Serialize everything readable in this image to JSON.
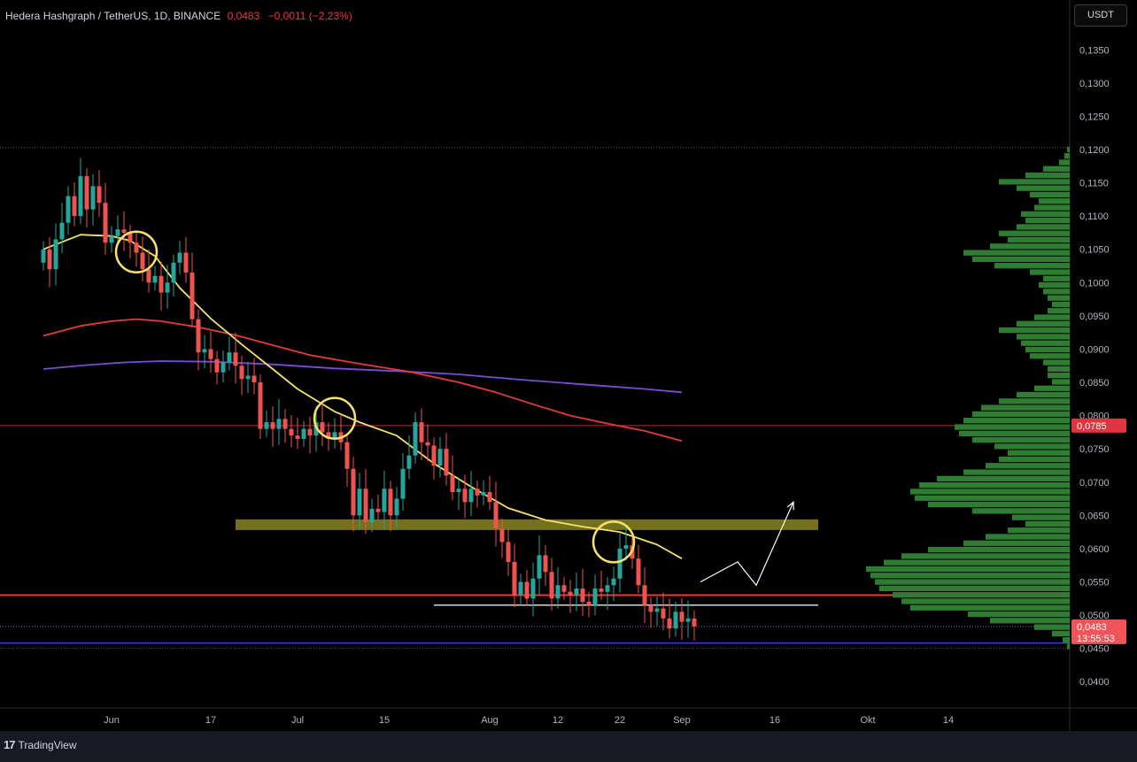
{
  "legend": {
    "symbol": "Hedera Hashgraph / TetherUS, 1D, BINANCE",
    "price": "0,0483",
    "change": "−0,0011 (−2,23%)"
  },
  "currency_button": "USDT",
  "brand": "TradingView",
  "colors": {
    "up": "#26a69a",
    "down": "#ef5350",
    "ma_short": "#f5e16e",
    "ma_mid": "#e53b3b",
    "ma_long": "#7b4cd6",
    "volume_profile": "#2e7d32",
    "zone": "#8a8420",
    "circle": "#f5e16e"
  },
  "chart_data": {
    "type": "candlestick",
    "symbol": "HBARUSDT",
    "timeframe": "1D",
    "exchange": "BINANCE",
    "current_price": 0.0483,
    "current_price_label": "0,0483",
    "countdown": "13:55:53",
    "marked_level": 0.0785,
    "marked_level_label": "0,0785",
    "y_ticks": [
      "0,1350",
      "0,1300",
      "0,1250",
      "0,1200",
      "0,1150",
      "0,1100",
      "0,1050",
      "0,1000",
      "0,0950",
      "0,0900",
      "0,0850",
      "0,0800",
      "0,0750",
      "0,0700",
      "0,0650",
      "0,0600",
      "0,0550",
      "0,0500",
      "0,0450",
      "0,0400"
    ],
    "y_tick_values": [
      0.135,
      0.13,
      0.125,
      0.12,
      0.115,
      0.11,
      0.105,
      0.1,
      0.095,
      0.09,
      0.085,
      0.08,
      0.075,
      0.07,
      0.065,
      0.06,
      0.055,
      0.05,
      0.045,
      0.04
    ],
    "x_ticks": [
      {
        "label": "Jun",
        "day": 0
      },
      {
        "label": "17",
        "day": 16
      },
      {
        "label": "Jul",
        "day": 30
      },
      {
        "label": "15",
        "day": 44
      },
      {
        "label": "Aug",
        "day": 61
      },
      {
        "label": "12",
        "day": 72
      },
      {
        "label": "22",
        "day": 82
      },
      {
        "label": "Sep",
        "day": 92
      },
      {
        "label": "16",
        "day": 107
      },
      {
        "label": "Okt",
        "day": 122
      },
      {
        "label": "14",
        "day": 135
      }
    ],
    "ylim": [
      0.0363,
      0.1385
    ],
    "first_day": -11,
    "candles_close": [
      0.105,
      0.102,
      0.1065,
      0.109,
      0.113,
      0.11,
      0.116,
      0.111,
      0.1145,
      0.112,
      0.106,
      0.107,
      0.108,
      0.1075,
      0.106,
      0.1045,
      0.102,
      0.1,
      0.101,
      0.0985,
      0.1,
      0.103,
      0.1045,
      0.1015,
      0.0945,
      0.0895,
      0.09,
      0.0885,
      0.0865,
      0.088,
      0.0895,
      0.0875,
      0.0855,
      0.086,
      0.085,
      0.078,
      0.079,
      0.078,
      0.0795,
      0.078,
      0.077,
      0.0765,
      0.078,
      0.077,
      0.079,
      0.0775,
      0.0765,
      0.0775,
      0.076,
      0.072,
      0.065,
      0.069,
      0.064,
      0.066,
      0.0655,
      0.069,
      0.065,
      0.0675,
      0.072,
      0.074,
      0.079,
      0.076,
      0.0755,
      0.0725,
      0.075,
      0.071,
      0.0685,
      0.069,
      0.067,
      0.069,
      0.068,
      0.0685,
      0.067,
      0.063,
      0.061,
      0.058,
      0.053,
      0.055,
      0.0525,
      0.0555,
      0.059,
      0.0565,
      0.0525,
      0.0545,
      0.0535,
      0.053,
      0.054,
      0.052,
      0.0515,
      0.054,
      0.0535,
      0.0545,
      0.0555,
      0.06,
      0.0605,
      0.0585,
      0.0545,
      0.0515,
      0.0505,
      0.051,
      0.0495,
      0.048,
      0.0505,
      0.049,
      0.0495,
      0.0483
    ],
    "ma_short": [
      [
        -11,
        0.105
      ],
      [
        -5,
        0.1072
      ],
      [
        0,
        0.107
      ],
      [
        3,
        0.1063
      ],
      [
        7,
        0.104
      ],
      [
        11,
        0.0992
      ],
      [
        16,
        0.0946
      ],
      [
        21,
        0.0907
      ],
      [
        26,
        0.087
      ],
      [
        30,
        0.084
      ],
      [
        36,
        0.0806
      ],
      [
        40,
        0.079
      ],
      [
        46,
        0.077
      ],
      [
        52,
        0.0728
      ],
      [
        58,
        0.0693
      ],
      [
        64,
        0.0661
      ],
      [
        70,
        0.0643
      ],
      [
        76,
        0.0633
      ],
      [
        82,
        0.0625
      ],
      [
        88,
        0.0606
      ],
      [
        92,
        0.0585
      ]
    ],
    "ma_mid": [
      [
        -11,
        0.092
      ],
      [
        -5,
        0.0935
      ],
      [
        0,
        0.0942
      ],
      [
        4,
        0.0945
      ],
      [
        8,
        0.0942
      ],
      [
        14,
        0.0933
      ],
      [
        20,
        0.0921
      ],
      [
        26,
        0.0906
      ],
      [
        32,
        0.0891
      ],
      [
        40,
        0.0878
      ],
      [
        48,
        0.0866
      ],
      [
        56,
        0.085
      ],
      [
        62,
        0.0835
      ],
      [
        68,
        0.0817
      ],
      [
        74,
        0.08
      ],
      [
        80,
        0.0788
      ],
      [
        86,
        0.0777
      ],
      [
        92,
        0.0762
      ]
    ],
    "ma_long": [
      [
        -11,
        0.087
      ],
      [
        -4,
        0.0876
      ],
      [
        2,
        0.088
      ],
      [
        8,
        0.0882
      ],
      [
        16,
        0.0881
      ],
      [
        26,
        0.0877
      ],
      [
        36,
        0.0871
      ],
      [
        46,
        0.0867
      ],
      [
        56,
        0.0862
      ],
      [
        66,
        0.0854
      ],
      [
        76,
        0.0847
      ],
      [
        86,
        0.084
      ],
      [
        92,
        0.0835
      ]
    ],
    "zone": {
      "from_day": 20,
      "to_day": 114,
      "low": 0.0628,
      "high": 0.0644
    },
    "support_red": 0.053,
    "support_white": {
      "from_day": 52,
      "to_day": 114,
      "value": 0.0515
    },
    "blue_level": 0.0458,
    "projection": [
      [
        95,
        0.055
      ],
      [
        101,
        0.058
      ],
      [
        104,
        0.0545
      ],
      [
        110,
        0.067
      ]
    ],
    "circles": [
      [
        4,
        0.1046
      ],
      [
        36,
        0.0796
      ],
      [
        81,
        0.061
      ]
    ],
    "volume_profile": {
      "top": 0.1205,
      "bottom": 0.0448,
      "widths": [
        3,
        6,
        12,
        30,
        50,
        80,
        60,
        45,
        35,
        40,
        55,
        50,
        60,
        80,
        70,
        90,
        120,
        110,
        85,
        45,
        30,
        35,
        30,
        25,
        20,
        25,
        40,
        60,
        80,
        60,
        55,
        50,
        45,
        30,
        25,
        25,
        20,
        40,
        60,
        80,
        100,
        110,
        120,
        130,
        125,
        110,
        85,
        70,
        80,
        95,
        120,
        150,
        170,
        180,
        175,
        160,
        110,
        65,
        50,
        70,
        95,
        120,
        160,
        190,
        210,
        230,
        225,
        220,
        215,
        200,
        190,
        180,
        115,
        90,
        40,
        20,
        8,
        3
      ]
    }
  }
}
